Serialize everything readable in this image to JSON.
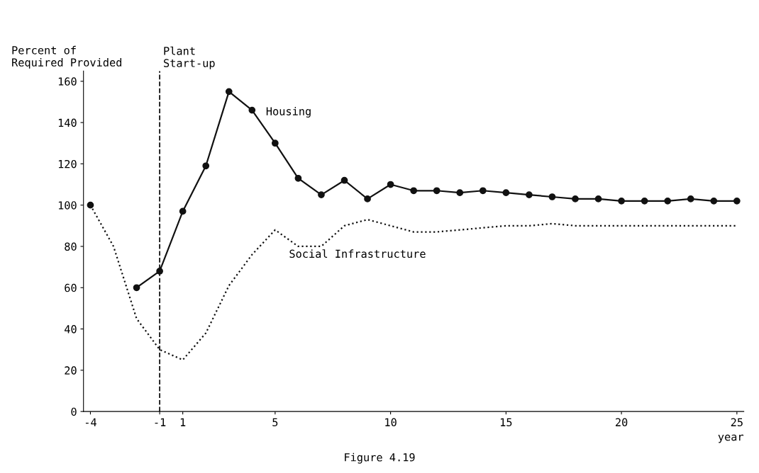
{
  "chart_data": {
    "type": "line",
    "ylabel": "Percent of\nRequired Provided",
    "xlabel": "year",
    "categories": [
      "-4",
      null,
      null,
      "-1",
      "1",
      null,
      null,
      null,
      "5",
      null,
      null,
      null,
      null,
      "10",
      null,
      null,
      null,
      null,
      "15",
      null,
      null,
      null,
      null,
      "20",
      null,
      null,
      null,
      null,
      "25"
    ],
    "series": [
      {
        "name": "Housing",
        "color": "#111111",
        "marker": "circle",
        "line_style": "solid",
        "values": [
          100,
          null,
          60,
          68,
          97,
          119,
          155,
          146,
          130,
          113,
          105,
          112,
          103,
          110,
          107,
          107,
          106,
          107,
          106,
          105,
          104,
          103,
          103,
          102,
          102,
          102,
          103,
          102,
          102
        ]
      },
      {
        "name": "Social Infrastructure",
        "color": "#111111",
        "marker": "none",
        "line_style": "dotted",
        "values": [
          100,
          80,
          45,
          30,
          25,
          38,
          61,
          76,
          88,
          80,
          80,
          90,
          93,
          90,
          87,
          87,
          88,
          89,
          90,
          90,
          91,
          90,
          90,
          90,
          90,
          90,
          90,
          90,
          90
        ]
      }
    ],
    "ylim": [
      0,
      165
    ],
    "yticks": [
      0,
      20,
      40,
      60,
      80,
      100,
      120,
      140,
      160
    ],
    "ref_lines": [
      {
        "axis": "x",
        "value": "-1",
        "label": "Plant\nStart-up",
        "line_style": "dashed",
        "color": "#111111"
      }
    ],
    "annotations": [
      "Figure 4.19"
    ],
    "grid": false,
    "legend": false
  }
}
